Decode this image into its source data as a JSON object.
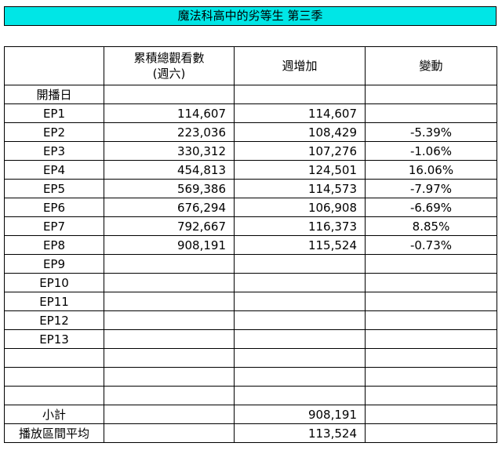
{
  "title": "魔法科高中的劣等生 第三季",
  "headers": {
    "col0": "",
    "col1_line1": "累積總觀看數",
    "col1_line2": "(週六)",
    "col2": "週增加",
    "col3": "變動"
  },
  "rows": [
    {
      "label": "開播日",
      "cumulative": "",
      "weekly": "",
      "change": ""
    },
    {
      "label": "EP1",
      "cumulative": "114,607",
      "weekly": "114,607",
      "change": ""
    },
    {
      "label": "EP2",
      "cumulative": "223,036",
      "weekly": "108,429",
      "change": "-5.39%"
    },
    {
      "label": "EP3",
      "cumulative": "330,312",
      "weekly": "107,276",
      "change": "-1.06%"
    },
    {
      "label": "EP4",
      "cumulative": "454,813",
      "weekly": "124,501",
      "change": "16.06%"
    },
    {
      "label": "EP5",
      "cumulative": "569,386",
      "weekly": "114,573",
      "change": "-7.97%"
    },
    {
      "label": "EP6",
      "cumulative": "676,294",
      "weekly": "106,908",
      "change": "-6.69%"
    },
    {
      "label": "EP7",
      "cumulative": "792,667",
      "weekly": "116,373",
      "change": "8.85%"
    },
    {
      "label": "EP8",
      "cumulative": "908,191",
      "weekly": "115,524",
      "change": "-0.73%"
    },
    {
      "label": "EP9",
      "cumulative": "",
      "weekly": "",
      "change": ""
    },
    {
      "label": "EP10",
      "cumulative": "",
      "weekly": "",
      "change": ""
    },
    {
      "label": "EP11",
      "cumulative": "",
      "weekly": "",
      "change": ""
    },
    {
      "label": "EP12",
      "cumulative": "",
      "weekly": "",
      "change": ""
    },
    {
      "label": "EP13",
      "cumulative": "",
      "weekly": "",
      "change": ""
    },
    {
      "label": "",
      "cumulative": "",
      "weekly": "",
      "change": ""
    },
    {
      "label": "",
      "cumulative": "",
      "weekly": "",
      "change": ""
    },
    {
      "label": "",
      "cumulative": "",
      "weekly": "",
      "change": ""
    },
    {
      "label": "小計",
      "cumulative": "",
      "weekly": "908,191",
      "change": ""
    },
    {
      "label": "播放區間平均",
      "cumulative": "",
      "weekly": "113,524",
      "change": ""
    }
  ],
  "colors": {
    "title_bg": "#00e6e6",
    "border": "#000000"
  }
}
